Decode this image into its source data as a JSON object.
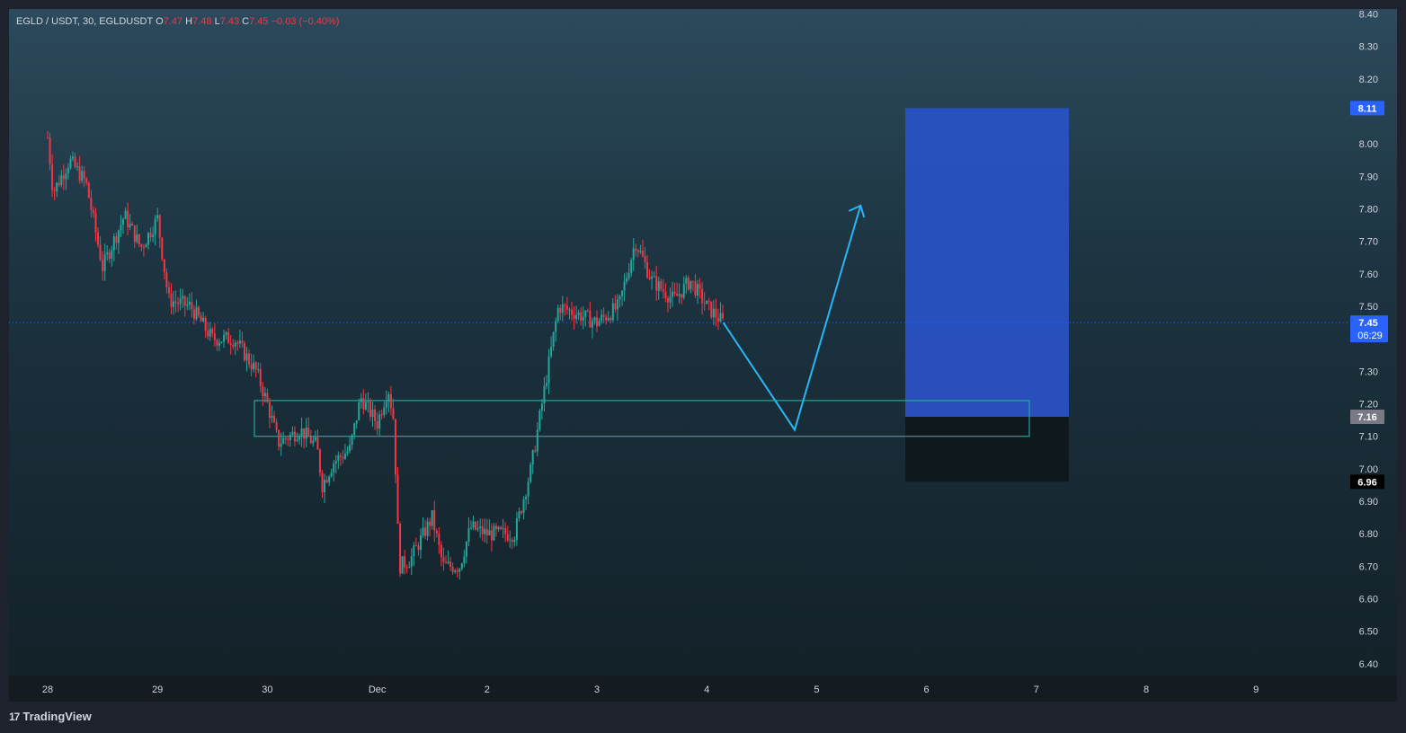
{
  "legend": {
    "symbol": "EGLD / USDT, 30, EGLDUSDT",
    "open_label": "O",
    "open": "7.47",
    "high_label": "H",
    "high": "7.48",
    "low_label": "L",
    "low": "7.43",
    "close_label": "C",
    "close": "7.45",
    "change": "−0.03 (−0.40%)"
  },
  "brand": {
    "logo": "17",
    "name": "TradingView"
  },
  "colors": {
    "up": "#26a69a",
    "down": "#f23645",
    "accent": "#2962ff",
    "arrow": "#29b6f6",
    "zone": "#26a69a",
    "target": "#2952c7",
    "stop": "#0d161b"
  },
  "chart_data": {
    "type": "candlestick",
    "title": "",
    "xlabel": "",
    "ylabel": "",
    "ylim": [
      6.35,
      8.42
    ],
    "y_ticks": [
      "8.40",
      "8.30",
      "8.20",
      "8.00",
      "7.90",
      "7.80",
      "7.70",
      "7.60",
      "7.50",
      "7.30",
      "7.20",
      "7.10",
      "7.00",
      "6.90",
      "6.80",
      "6.70",
      "6.60",
      "6.50",
      "6.40"
    ],
    "x_ticks": [
      "28",
      "29",
      "30",
      "Dec",
      "2",
      "3",
      "4",
      "5",
      "6",
      "7",
      "8",
      "9"
    ],
    "price_path": [
      [
        0,
        8.02
      ],
      [
        0.05,
        7.85
      ],
      [
        0.2,
        7.95
      ],
      [
        0.35,
        7.88
      ],
      [
        0.5,
        7.62
      ],
      [
        0.7,
        7.78
      ],
      [
        0.85,
        7.68
      ],
      [
        1.0,
        7.77
      ],
      [
        1.1,
        7.52
      ],
      [
        1.3,
        7.5
      ],
      [
        1.5,
        7.4
      ],
      [
        1.7,
        7.4
      ],
      [
        1.9,
        7.3
      ],
      [
        2.0,
        7.2
      ],
      [
        2.1,
        7.08
      ],
      [
        2.3,
        7.12
      ],
      [
        2.45,
        7.07
      ],
      [
        2.5,
        6.95
      ],
      [
        2.6,
        7.02
      ],
      [
        2.75,
        7.06
      ],
      [
        2.85,
        7.22
      ],
      [
        3.0,
        7.14
      ],
      [
        3.1,
        7.25
      ],
      [
        3.15,
        7.15
      ],
      [
        3.2,
        6.7
      ],
      [
        3.3,
        6.72
      ],
      [
        3.5,
        6.85
      ],
      [
        3.6,
        6.7
      ],
      [
        3.75,
        6.7
      ],
      [
        3.85,
        6.82
      ],
      [
        4.0,
        6.8
      ],
      [
        4.25,
        6.8
      ],
      [
        4.4,
        7.0
      ],
      [
        4.5,
        7.2
      ],
      [
        4.65,
        7.5
      ],
      [
        4.8,
        7.48
      ],
      [
        5.0,
        7.45
      ],
      [
        5.2,
        7.5
      ],
      [
        5.35,
        7.7
      ],
      [
        5.5,
        7.58
      ],
      [
        5.7,
        7.52
      ],
      [
        5.85,
        7.58
      ],
      [
        6.0,
        7.5
      ],
      [
        6.15,
        7.45
      ]
    ],
    "last_price": 7.45,
    "countdown": "06:29",
    "last_price_label": "7.45",
    "position": {
      "take_profit": 8.11,
      "entry": 7.16,
      "stop": 6.96,
      "take_profit_label": "8.11",
      "entry_label": "7.16",
      "stop_label": "6.96"
    },
    "demand_zone": {
      "top": 7.21,
      "bottom": 7.1
    },
    "projection": [
      [
        6.15,
        7.45
      ],
      [
        6.8,
        7.12
      ],
      [
        7.4,
        7.81
      ]
    ]
  }
}
